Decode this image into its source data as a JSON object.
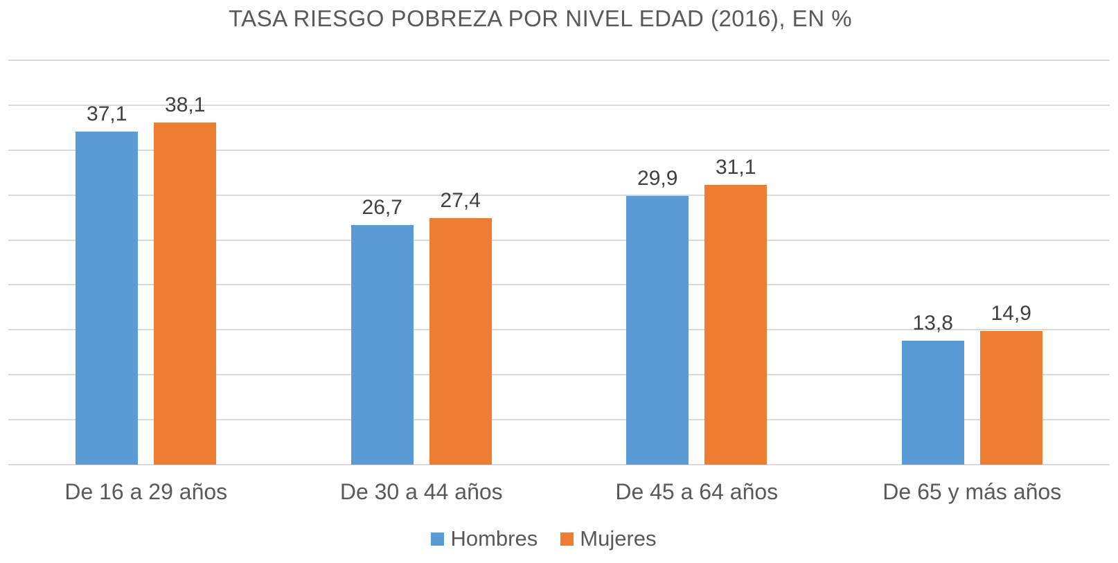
{
  "chart_data": {
    "type": "bar",
    "title": "TASA RIESGO POBREZA POR NIVEL EDAD (2016), EN %",
    "categories": [
      "De 16 a 29 años",
      "De 30 a 44 años",
      "De 45 a 64 años",
      "De 65 y más años"
    ],
    "series": [
      {
        "name": "Hombres",
        "color": "#5B9BD5",
        "values": [
          37.1,
          26.7,
          29.9,
          13.8
        ],
        "labels": [
          "37,1",
          "26,7",
          "29,9",
          "13,8"
        ]
      },
      {
        "name": "Mujeres",
        "color": "#ED7D31",
        "values": [
          38.1,
          27.4,
          31.1,
          14.9
        ],
        "labels": [
          "38,1",
          "27,4",
          "31,1",
          "14,9"
        ]
      }
    ],
    "xlabel": "",
    "ylabel": "",
    "ylim": [
      0,
      45
    ],
    "gridline_step": 5,
    "grid": true,
    "y_tick_labels_visible": false,
    "legend_position": "bottom",
    "colors": {
      "background": "#FFFFFF",
      "grid": "#D9D9D9",
      "title_text": "#595959",
      "data_label_text": "#404040",
      "axis_text": "#595959"
    }
  }
}
